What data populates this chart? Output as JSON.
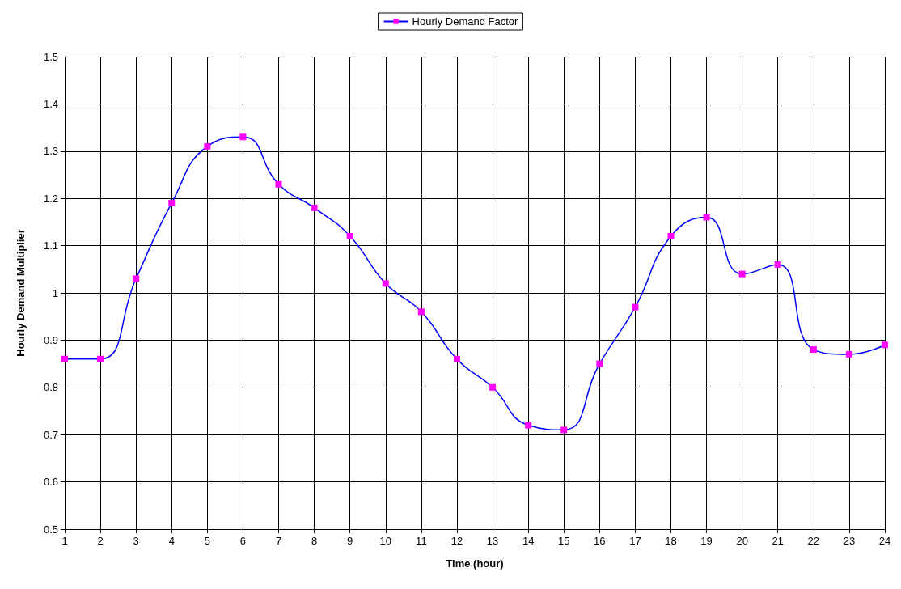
{
  "chart_data": {
    "type": "line",
    "xlabel": "Time (hour)",
    "ylabel": "Hourly Demand Multiplier",
    "x": [
      1,
      2,
      3,
      4,
      5,
      6,
      7,
      8,
      9,
      10,
      11,
      12,
      13,
      14,
      15,
      16,
      17,
      18,
      19,
      20,
      21,
      22,
      23,
      24
    ],
    "series": [
      {
        "name": "Hourly Demand Factor",
        "color": "#0000ff",
        "values": [
          0.86,
          0.86,
          1.03,
          1.19,
          1.31,
          1.33,
          1.23,
          1.18,
          1.12,
          1.02,
          0.96,
          0.86,
          0.8,
          0.72,
          0.71,
          0.85,
          0.97,
          1.12,
          1.16,
          1.04,
          1.06,
          0.88,
          0.87,
          0.89
        ]
      }
    ],
    "xlim": [
      1,
      24
    ],
    "xticks": [
      1,
      2,
      3,
      4,
      5,
      6,
      7,
      8,
      9,
      10,
      11,
      12,
      13,
      14,
      15,
      16,
      17,
      18,
      19,
      20,
      21,
      22,
      23,
      24
    ],
    "ylim": [
      0.5,
      1.5
    ],
    "yticks": [
      0.5,
      0.6,
      0.7,
      0.8,
      0.9,
      1,
      1.1,
      1.2,
      1.3,
      1.4,
      1.5
    ],
    "grid": true,
    "legend": "top",
    "marker": "square",
    "line_style": "solid"
  }
}
